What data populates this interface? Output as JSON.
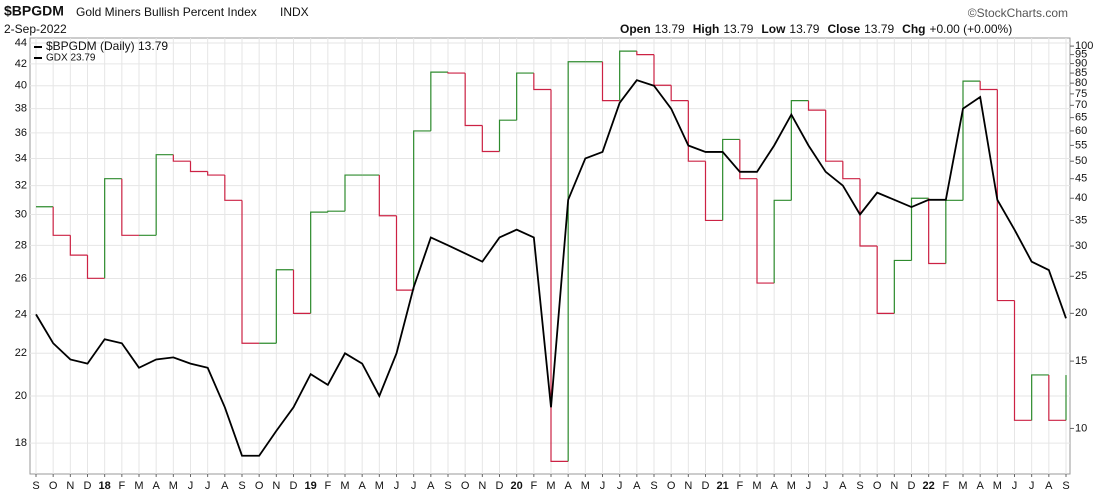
{
  "chart_data": {
    "type": "line",
    "symbol": "$BPGDM",
    "title": "Gold Miners Bullish Percent Index",
    "exchange": "INDX",
    "date": "2-Sep-2022",
    "credit": "©StockCharts.com",
    "quote": [
      {
        "label": "Open",
        "value": "13.79"
      },
      {
        "label": "High",
        "value": "13.79"
      },
      {
        "label": "Low",
        "value": "13.79"
      },
      {
        "label": "Close",
        "value": "13.79"
      },
      {
        "label": "Chg",
        "value": "+0.00 (+0.00%)"
      }
    ],
    "categories": [
      "S",
      "O",
      "N",
      "D",
      "18",
      "F",
      "M",
      "A",
      "M",
      "J",
      "J",
      "A",
      "S",
      "O",
      "N",
      "D",
      "19",
      "F",
      "M",
      "A",
      "M",
      "J",
      "J",
      "A",
      "S",
      "O",
      "N",
      "D",
      "20",
      "F",
      "M",
      "A",
      "M",
      "J",
      "J",
      "A",
      "S",
      "O",
      "N",
      "D",
      "21",
      "F",
      "M",
      "A",
      "M",
      "J",
      "J",
      "A",
      "S",
      "O",
      "N",
      "D",
      "22",
      "F",
      "M",
      "A",
      "M",
      "J",
      "J",
      "A",
      "S"
    ],
    "log_scale": true,
    "grid": true,
    "ylim": [
      16.8,
      44.5
    ],
    "yticks": [
      18,
      20,
      22,
      24,
      26,
      28,
      30,
      32,
      34,
      36,
      38,
      40,
      42,
      44
    ],
    "y2lim": [
      7.6,
      105
    ],
    "y2ticks": [
      10,
      15,
      20,
      25,
      30,
      35,
      40,
      45,
      50,
      55,
      60,
      65,
      70,
      75,
      80,
      85,
      90,
      95,
      100
    ],
    "series": [
      {
        "name": "$BPGDM (Daily) 13.79",
        "axis": "y2",
        "style": "step",
        "up_color": "#2e8b2e",
        "down_color": "#cc2244",
        "values": [
          38,
          32,
          28.4,
          24.7,
          45,
          32,
          32,
          52,
          50,
          47,
          46,
          39.5,
          16.7,
          16.7,
          26,
          20,
          36.8,
          37,
          46,
          46,
          36,
          23,
          60,
          85.5,
          85,
          62,
          53,
          64,
          85,
          77,
          8.2,
          91,
          91,
          72,
          97,
          95,
          79,
          72,
          50,
          35,
          57,
          45,
          24,
          39.5,
          72,
          68,
          50,
          45,
          30,
          20,
          27.5,
          40,
          27,
          39.5,
          81,
          77,
          21.6,
          10.5,
          13.8,
          10.5,
          13.79
        ]
      },
      {
        "name": "GDX 23.79",
        "color": "#000000",
        "values": [
          24,
          22.5,
          21.7,
          21.5,
          22.7,
          22.5,
          21.3,
          21.7,
          21.8,
          21.5,
          21.3,
          19.5,
          17.5,
          17.5,
          18.5,
          19.5,
          21,
          20.5,
          22,
          21.5,
          20,
          22,
          25.5,
          28.5,
          28,
          27.5,
          27,
          28.5,
          29,
          28.5,
          19.5,
          31,
          34,
          34.5,
          38.5,
          40.5,
          40,
          38,
          35,
          34.5,
          34.5,
          33,
          33,
          35,
          37.5,
          35,
          33,
          32,
          30,
          31.5,
          31,
          30.5,
          31,
          31,
          38,
          39,
          31,
          29,
          27,
          26.5,
          23.79
        ]
      }
    ]
  }
}
